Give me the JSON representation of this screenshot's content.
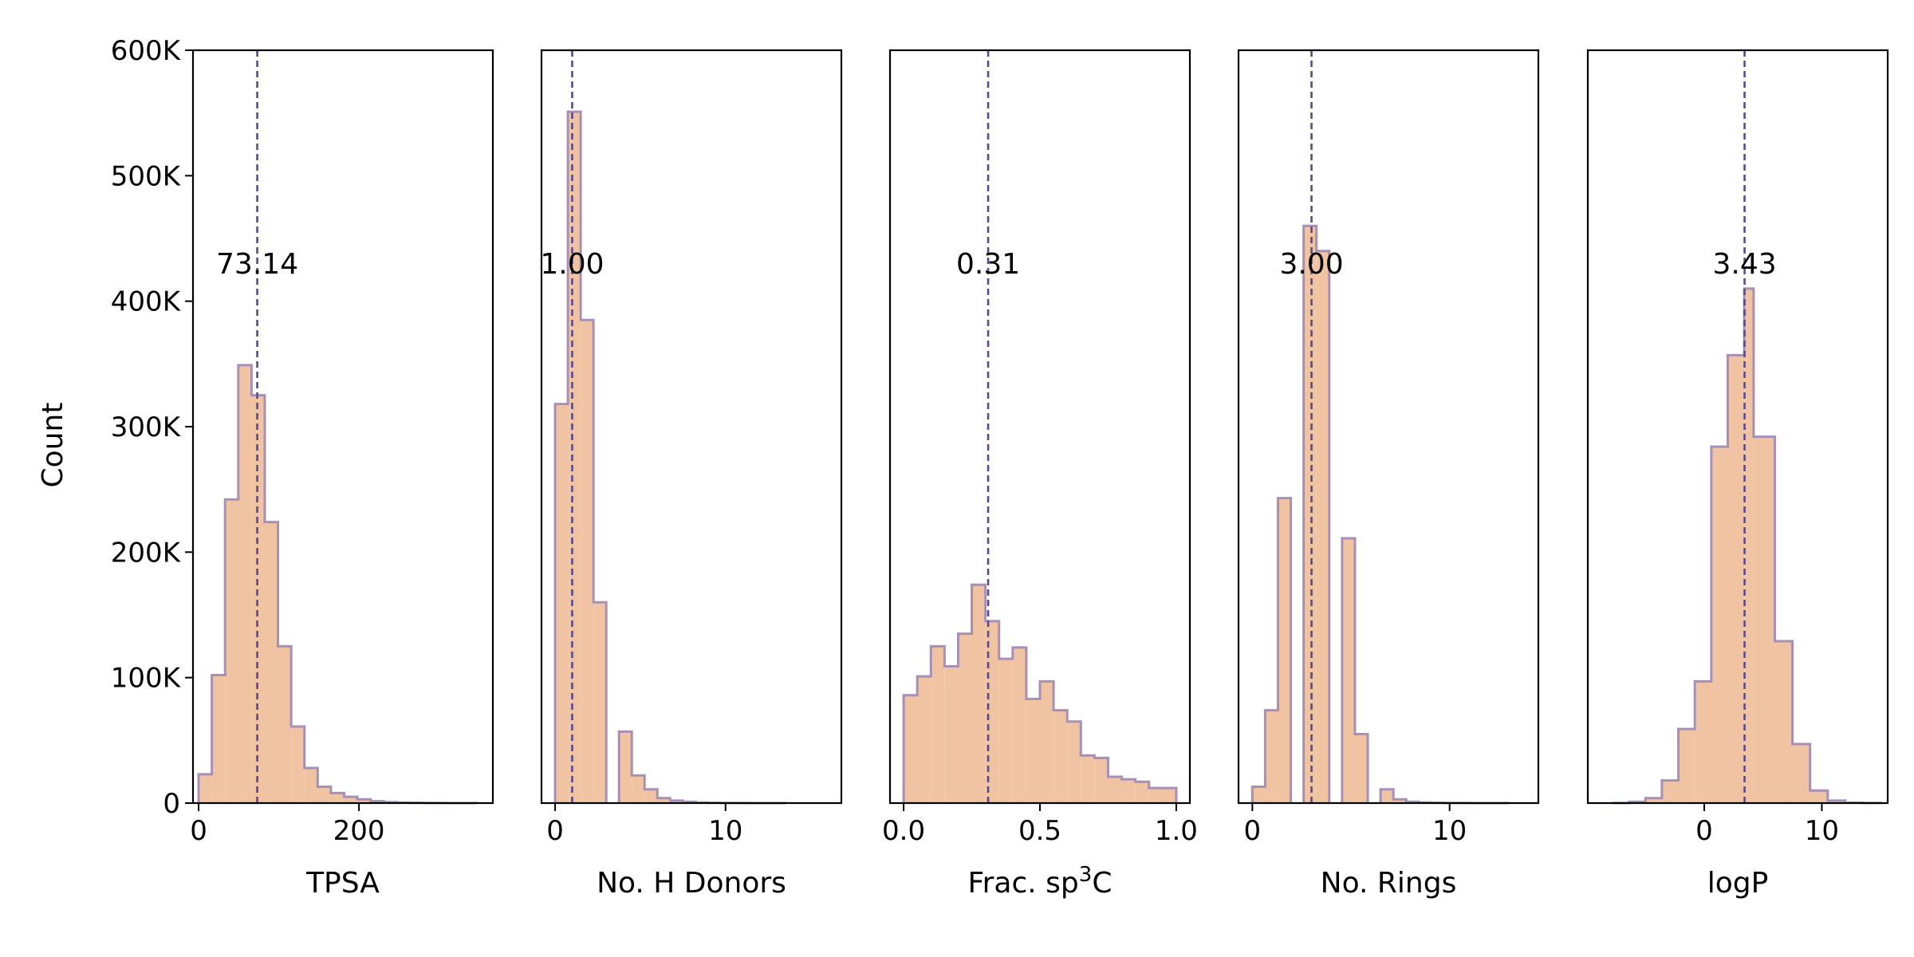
{
  "chart_data": {
    "type": "histogram",
    "ylabel": "Count",
    "ylim": [
      0,
      600000
    ],
    "yticks": [
      0,
      100000,
      200000,
      300000,
      400000,
      500000,
      600000
    ],
    "ytick_labels": [
      "0",
      "100K",
      "200K",
      "300K",
      "400K",
      "500K",
      "600K"
    ],
    "colors": {
      "fill": "#f0c4a3",
      "edge": "#a88fb6",
      "median_line": "#5a4a8a"
    },
    "panels": [
      {
        "xlabel": "TPSA",
        "xlim": [
          -7,
          367
        ],
        "xticks": [
          0,
          200
        ],
        "xtick_labels": [
          "0",
          "200"
        ],
        "median": 73.14,
        "median_label": "73.14",
        "bins": [
          0,
          16.5,
          33,
          49.5,
          66,
          82.5,
          99,
          115.5,
          132,
          148.5,
          165,
          181.5,
          198,
          214.5,
          231,
          247.5,
          264,
          280.5,
          297,
          313.5,
          330,
          346.5
        ],
        "counts": [
          23000,
          102000,
          242000,
          349000,
          325000,
          224000,
          125000,
          61000,
          28000,
          13000,
          8000,
          5000,
          3000,
          1500,
          800,
          400,
          200,
          100,
          50,
          20,
          10
        ]
      },
      {
        "xlabel": "No. H Donors",
        "xlim": [
          -0.8,
          16.8
        ],
        "xticks": [
          0,
          10
        ],
        "xtick_labels": [
          "0",
          "10"
        ],
        "median": 1.0,
        "median_label": "1.00",
        "bins": [
          0,
          0.75,
          1.5,
          2.25,
          3,
          3.75,
          4.5,
          5.25,
          6,
          6.75,
          7.5,
          8.25,
          9,
          9.75,
          10.5,
          11.25,
          12,
          12.75,
          13.5,
          14.25,
          15,
          15.75
        ],
        "counts": [
          318000,
          551000,
          385000,
          160000,
          0,
          57000,
          22000,
          11000,
          4000,
          2000,
          1000,
          500,
          200,
          100,
          50,
          20,
          10,
          5,
          0,
          0,
          0
        ]
      },
      {
        "xlabel": "Frac. sp",
        "xlabel_sup": "3",
        "xlabel_tail": "C",
        "xlim": [
          -0.05,
          1.05
        ],
        "xticks": [
          0.0,
          0.5,
          1.0
        ],
        "xtick_labels": [
          "0.0",
          "0.5",
          "1.0"
        ],
        "median": 0.31,
        "median_label": "0.31",
        "bins": [
          0,
          0.05,
          0.1,
          0.15,
          0.2,
          0.25,
          0.3,
          0.35,
          0.4,
          0.45,
          0.5,
          0.55,
          0.6,
          0.65,
          0.7,
          0.75,
          0.8,
          0.85,
          0.9,
          0.95,
          1.0
        ],
        "counts": [
          86000,
          101000,
          125000,
          109000,
          135000,
          174000,
          145000,
          115000,
          124000,
          83000,
          97000,
          74000,
          65000,
          38000,
          36000,
          21000,
          19000,
          17000,
          12000,
          12000
        ]
      },
      {
        "xlabel": "No. Rings",
        "xlim": [
          -0.7,
          14.5
        ],
        "xticks": [
          0,
          10
        ],
        "xtick_labels": [
          "0",
          "10"
        ],
        "median": 3.0,
        "median_label": "3.00",
        "bins": [
          0,
          0.65,
          1.3,
          1.95,
          2.6,
          3.25,
          3.9,
          4.55,
          5.2,
          5.85,
          6.5,
          7.15,
          7.8,
          8.45,
          9.1,
          9.75,
          10.4,
          11.05,
          11.7,
          12.35,
          13,
          13.65
        ],
        "counts": [
          13000,
          74000,
          243000,
          0,
          460000,
          440000,
          0,
          211000,
          55000,
          0,
          11000,
          3000,
          1000,
          500,
          200,
          100,
          50,
          20,
          10,
          5,
          0
        ]
      },
      {
        "xlabel": "logP",
        "xlim": [
          -9.9,
          15.6
        ],
        "xticks": [
          0,
          10
        ],
        "xtick_labels": [
          "0",
          "10"
        ],
        "median": 3.43,
        "median_label": "3.43",
        "bins": [
          -9.2,
          -7.8,
          -6.4,
          -5.0,
          -3.6,
          -2.2,
          -0.8,
          0.6,
          2.0,
          3.4,
          4.2,
          6.0,
          7.5,
          9.0,
          10.5,
          12.0,
          13.5,
          15.0
        ],
        "counts": [
          0,
          100,
          1000,
          4000,
          18000,
          59000,
          97000,
          284000,
          357000,
          410000,
          292000,
          129000,
          47000,
          10000,
          2000,
          300,
          50
        ]
      }
    ]
  }
}
